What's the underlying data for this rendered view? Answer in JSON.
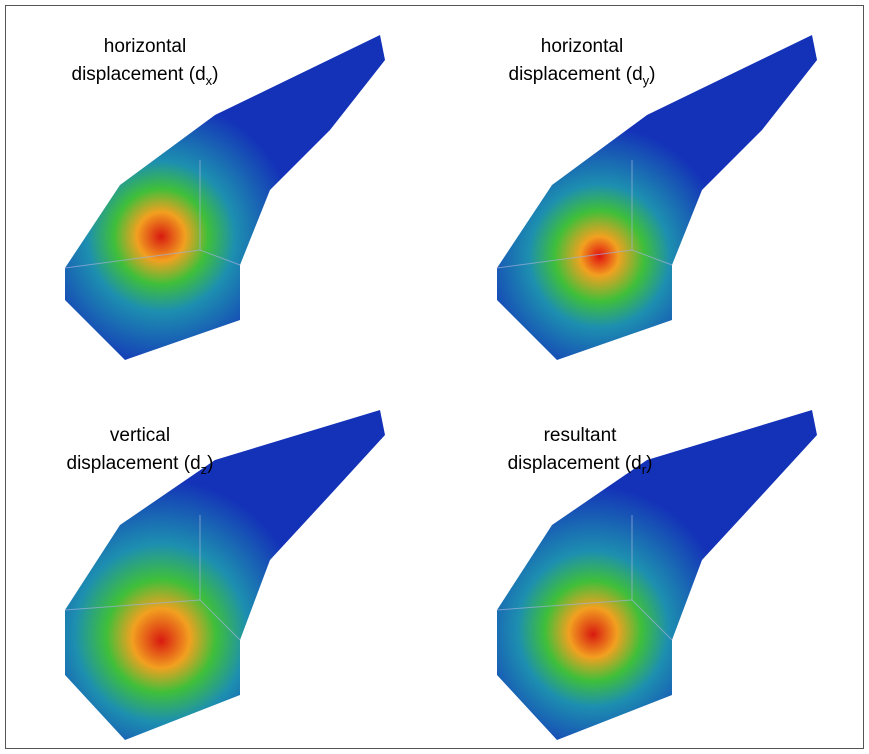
{
  "panels": [
    {
      "line1": "horizontal",
      "line2_prefix": "displacement (d",
      "subscript": "x",
      "line2_suffix": ")"
    },
    {
      "line1": "horizontal",
      "line2_prefix": "displacement (d",
      "subscript": "y",
      "line2_suffix": ")"
    },
    {
      "line1": "vertical",
      "line2_prefix": "displacement (d",
      "subscript": "z",
      "line2_suffix": ")"
    },
    {
      "line1": "resultant",
      "line2_prefix": "displacement (d",
      "subscript": "r",
      "line2_suffix": ")"
    }
  ]
}
